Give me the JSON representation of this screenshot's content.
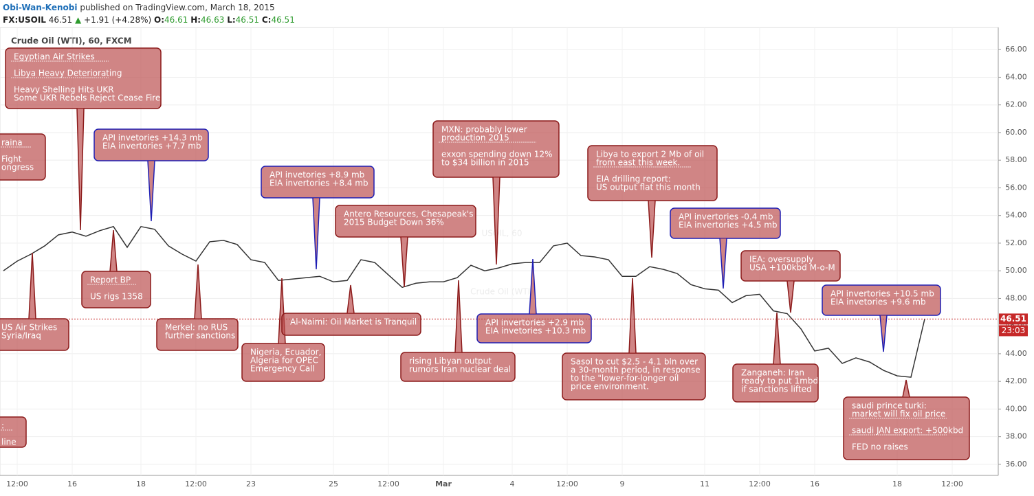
{
  "header": {
    "author": "Obi-Wan-Kenobi",
    "published": "published on TradingView.com, March 18, 2015",
    "symbol": "FX:USOIL",
    "last": "46.51",
    "arrow": "▲",
    "change": "+1.91 (+4.28%)",
    "ohlc": [
      {
        "label": "O:",
        "value": "46.61"
      },
      {
        "label": "H:",
        "value": "46.63"
      },
      {
        "label": "L:",
        "value": "46.51"
      },
      {
        "label": "C:",
        "value": "46.51"
      }
    ]
  },
  "chart_data": {
    "type": "line",
    "title": "Crude Oil (WTI), 60, FXCM",
    "watermark": [
      "USOIL, 60",
      "Crude Oil (WTI)"
    ],
    "categories": [
      null,
      "12:00",
      null,
      null,
      null,
      "16",
      null,
      null,
      null,
      null,
      "18",
      null,
      null,
      null,
      "12:00",
      null,
      null,
      null,
      "23",
      null,
      null,
      null,
      null,
      null,
      "25",
      null,
      null,
      null,
      "12:00",
      null,
      null,
      null,
      "Mar",
      null,
      null,
      null,
      null,
      "4",
      null,
      null,
      null,
      "12:00",
      null,
      null,
      null,
      "9",
      null,
      null,
      null,
      null,
      null,
      "11",
      null,
      null,
      null,
      "12:00",
      null,
      null,
      null,
      "16",
      null,
      null,
      null,
      null,
      null,
      "18",
      null,
      null,
      null,
      "12:00"
    ],
    "series": [
      {
        "name": "FX:USOIL",
        "color": "#333333",
        "values": [
          50.0,
          50.7,
          51.2,
          51.8,
          52.6,
          52.8,
          52.5,
          52.9,
          53.2,
          51.7,
          53.2,
          53.0,
          51.8,
          51.2,
          50.7,
          52.1,
          52.2,
          51.9,
          50.8,
          50.6,
          49.3,
          49.4,
          49.5,
          49.6,
          49.2,
          49.3,
          50.8,
          50.6,
          49.7,
          48.8,
          49.1,
          49.2,
          49.2,
          49.5,
          50.4,
          50.0,
          50.2,
          50.5,
          50.6,
          50.6,
          51.8,
          52.0,
          51.1,
          51.0,
          50.8,
          49.6,
          49.6,
          50.3,
          50.1,
          49.8,
          49.0,
          48.7,
          48.6,
          47.7,
          48.2,
          48.3,
          47.1,
          46.9,
          45.8,
          44.2,
          44.4,
          43.3,
          43.7,
          43.4,
          42.8,
          42.4,
          42.3,
          46.51,
          null,
          null
        ]
      }
    ],
    "ylim": [
      35.2,
      67.6
    ],
    "yticks": [
      {
        "value": 36,
        "label": "36.00"
      },
      {
        "value": 38,
        "label": "38.00"
      },
      {
        "value": 40,
        "label": "40.00"
      },
      {
        "value": 42,
        "label": "42.00"
      },
      {
        "value": 44,
        "label": "44.00"
      },
      {
        "value": 46,
        "label": "46.00"
      },
      {
        "value": 48,
        "label": "48.00"
      },
      {
        "value": 50,
        "label": "50.00"
      },
      {
        "value": 52,
        "label": "52.00"
      },
      {
        "value": 54,
        "label": "54.00"
      },
      {
        "value": 56,
        "label": "56.00"
      },
      {
        "value": 58,
        "label": "58.00"
      },
      {
        "value": 60,
        "label": "60.00"
      },
      {
        "value": 62,
        "label": "62.00"
      },
      {
        "value": 64,
        "label": "64.00"
      },
      {
        "value": 66,
        "label": "66.00"
      }
    ],
    "grid": true,
    "last_price": {
      "value": 46.51,
      "label": "46.51",
      "color": "#c62828",
      "countdown": "23:03"
    },
    "annotations": [
      {
        "groups": [
          [
            "Egyptian Air Strikes"
          ],
          [
            "Libya Heavy Deteriorating"
          ],
          [
            "Heavy Shelling Hits UKR",
            "Some UKR Rebels Reject Cease Fire"
          ]
        ]
      },
      {
        "groups": [
          [
            "raina"
          ],
          [
            "Fight",
            "ongress"
          ]
        ]
      },
      {
        "groups": [
          [
            "API invetories +14.3 mb",
            "EIA invertories +7.7 mb"
          ]
        ]
      },
      {
        "groups": [
          [
            "Report BP"
          ],
          [
            "US rigs 1358"
          ]
        ]
      },
      {
        "groups": [
          [
            "US Air Strikes",
            "Syria/Iraq"
          ]
        ]
      },
      {
        "groups": [
          [
            "Merkel: no RUS",
            "further sanctions"
          ]
        ]
      },
      {
        "groups": [
          [
            "API invetories +8.9 mb",
            "EIA invertories +8.4 mb"
          ]
        ]
      },
      {
        "groups": [
          [
            "Nigeria, Ecuador,",
            "Algeria for OPEC",
            "Emergency Call"
          ]
        ]
      },
      {
        "groups": [
          [
            "Al-Naimi: Oil Market is Tranquil"
          ]
        ]
      },
      {
        "groups": [
          [
            "Antero Resources, Chesapeak's",
            "2015 Budget Down 36%"
          ]
        ]
      },
      {
        "groups": [
          [
            "rising Libyan output",
            "rumors Iran nuclear deal"
          ]
        ]
      },
      {
        "groups": [
          [
            "MXN: probably lower",
            "production 2015"
          ],
          [
            "exxon spending down 12%",
            "to $34 billion in 2015"
          ]
        ]
      },
      {
        "groups": [
          [
            "API invertories +2.9 mb",
            "EIA invetories +10.3 mb"
          ]
        ]
      },
      {
        "groups": [
          [
            "Libya to export 2 Mb of oil",
            "from east this week."
          ],
          [
            "EIA drilling report:",
            "US output flat this month"
          ]
        ]
      },
      {
        "groups": [
          [
            "Sasol to cut $2.5 - 4.1 bln over",
            "a 30-month period, in response",
            "to the \"lower-for-longer oil",
            "price environment."
          ]
        ]
      },
      {
        "groups": [
          [
            "API invertories -0.4 mb",
            "EIA invertories +4.5 mb"
          ]
        ]
      },
      {
        "groups": [
          [
            "IEA: oversupply",
            "USA +100kbd M-o-M"
          ]
        ]
      },
      {
        "groups": [
          [
            "Zanganeh: Iran",
            "ready to put 1mbd",
            "if sanctions lifted"
          ]
        ]
      },
      {
        "groups": [
          [
            "API invertories +10.5 mb",
            "EIA invetories +9.6 mb"
          ]
        ]
      },
      {
        "groups": [
          [
            "saudi prince turki:",
            "market will fix oil price"
          ],
          [
            "saudi JAN export: +500kbd"
          ],
          [
            "FED no raises"
          ]
        ]
      },
      {
        "groups": [
          [
            ":"
          ],
          [
            "line"
          ]
        ]
      }
    ]
  }
}
